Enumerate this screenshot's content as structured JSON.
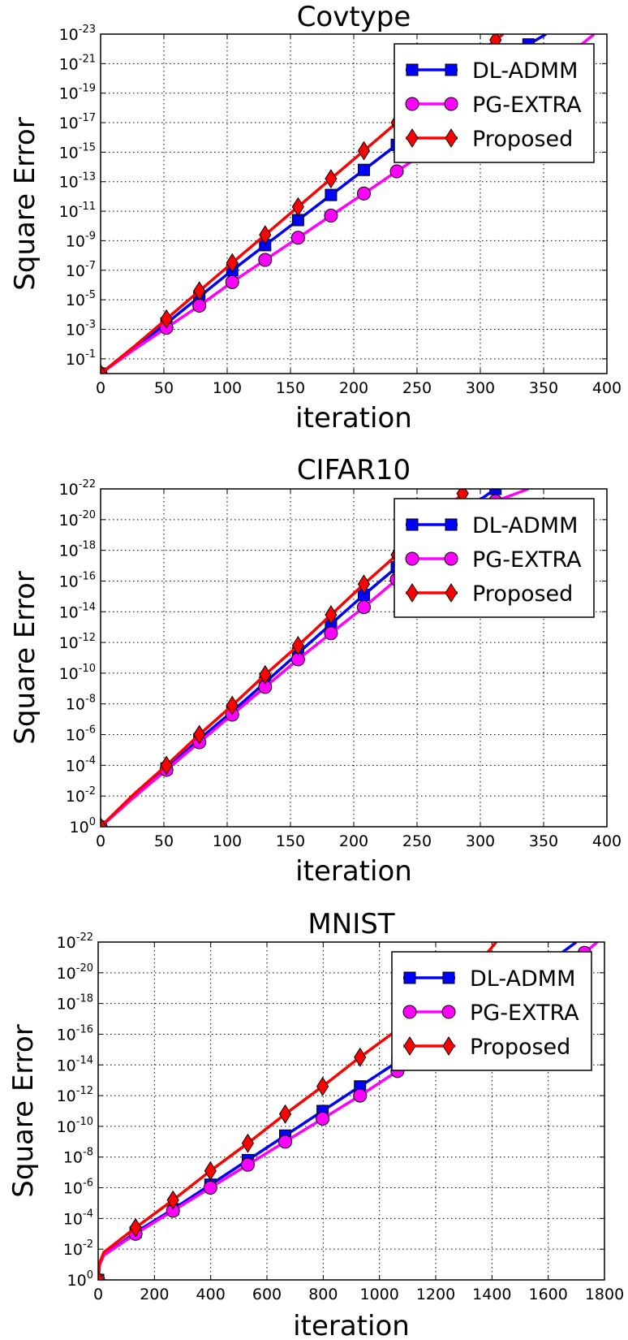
{
  "chart_data": [
    {
      "type": "line",
      "title": "Covtype",
      "xlabel": "iteration",
      "ylabel": "Square Error",
      "xlim": [
        0,
        400
      ],
      "xticks": [
        "0",
        "50",
        "100",
        "150",
        "200",
        "250",
        "300",
        "350",
        "400"
      ],
      "ylim_log10": [
        -23,
        0
      ],
      "yscale": "log",
      "yticks": [
        {
          "base": "10",
          "exp": "-1"
        },
        {
          "base": "10",
          "exp": "-3"
        },
        {
          "base": "10",
          "exp": "-5"
        },
        {
          "base": "10",
          "exp": "-7"
        },
        {
          "base": "10",
          "exp": "-9"
        },
        {
          "base": "10",
          "exp": "-11"
        },
        {
          "base": "10",
          "exp": "-13"
        },
        {
          "base": "10",
          "exp": "-15"
        },
        {
          "base": "10",
          "exp": "-17"
        },
        {
          "base": "10",
          "exp": "-19"
        },
        {
          "base": "10",
          "exp": "-21"
        },
        {
          "base": "10",
          "exp": "-23"
        }
      ],
      "grid": true,
      "legend": "top-right",
      "series": [
        {
          "name": "DL-ADMM",
          "color": "#0000ff",
          "marker": "square",
          "x": [
            0,
            26,
            52,
            78,
            104,
            130,
            156,
            182,
            208,
            234,
            260,
            286,
            312,
            338,
            352
          ],
          "y_log10": [
            0,
            -1.7,
            -3.4,
            -5.2,
            -7.0,
            -8.7,
            -10.4,
            -12.1,
            -13.8,
            -15.5,
            -17.2,
            -18.9,
            -20.6,
            -22.3,
            -23
          ]
        },
        {
          "name": "PG-EXTRA",
          "color": "#ff00ff",
          "marker": "circle",
          "x": [
            0,
            26,
            52,
            78,
            104,
            130,
            156,
            182,
            208,
            234,
            260,
            286,
            312,
            338,
            364,
            390
          ],
          "y_log10": [
            0,
            -1.6,
            -3.1,
            -4.6,
            -6.2,
            -7.7,
            -9.2,
            -10.7,
            -12.2,
            -13.7,
            -15.2,
            -16.7,
            -18.2,
            -19.7,
            -21.2,
            -23
          ]
        },
        {
          "name": "Proposed",
          "color": "#ff0000",
          "marker": "diamond",
          "x": [
            0,
            26,
            52,
            78,
            104,
            130,
            156,
            182,
            208,
            234,
            260,
            286,
            312,
            318
          ],
          "y_log10": [
            0,
            -1.8,
            -3.7,
            -5.6,
            -7.5,
            -9.4,
            -11.3,
            -13.2,
            -15.1,
            -17.0,
            -18.9,
            -20.8,
            -22.6,
            -23
          ]
        }
      ]
    },
    {
      "type": "line",
      "title": "CIFAR10",
      "xlabel": "iteration",
      "ylabel": "Square Error",
      "xlim": [
        0,
        400
      ],
      "xticks": [
        "0",
        "50",
        "100",
        "150",
        "200",
        "250",
        "300",
        "350",
        "400"
      ],
      "ylim_log10": [
        -22,
        0
      ],
      "yscale": "log",
      "yticks": [
        {
          "base": "10",
          "exp": "0"
        },
        {
          "base": "10",
          "exp": "-2"
        },
        {
          "base": "10",
          "exp": "-4"
        },
        {
          "base": "10",
          "exp": "-6"
        },
        {
          "base": "10",
          "exp": "-8"
        },
        {
          "base": "10",
          "exp": "-10"
        },
        {
          "base": "10",
          "exp": "-12"
        },
        {
          "base": "10",
          "exp": "-14"
        },
        {
          "base": "10",
          "exp": "-16"
        },
        {
          "base": "10",
          "exp": "-18"
        },
        {
          "base": "10",
          "exp": "-20"
        },
        {
          "base": "10",
          "exp": "-22"
        }
      ],
      "grid": true,
      "legend": "top-right",
      "series": [
        {
          "name": "DL-ADMM",
          "color": "#0000ff",
          "marker": "square",
          "x": [
            0,
            26,
            52,
            78,
            104,
            130,
            156,
            182,
            208,
            234,
            260,
            286,
            312,
            313
          ],
          "y_log10": [
            0,
            -1.9,
            -3.8,
            -5.7,
            -7.5,
            -9.4,
            -11.3,
            -13.2,
            -15.1,
            -16.9,
            -18.7,
            -20.5,
            -22.0,
            -22
          ]
        },
        {
          "name": "PG-EXTRA",
          "color": "#ff00ff",
          "marker": "circle",
          "x": [
            0,
            26,
            52,
            78,
            104,
            130,
            156,
            182,
            208,
            234,
            260,
            286,
            312,
            338
          ],
          "y_log10": [
            0,
            -1.9,
            -3.7,
            -5.5,
            -7.3,
            -9.1,
            -10.9,
            -12.6,
            -14.3,
            -16.1,
            -17.8,
            -19.5,
            -21.2,
            -22
          ]
        },
        {
          "name": "Proposed",
          "color": "#ff0000",
          "marker": "diamond",
          "x": [
            0,
            26,
            52,
            78,
            104,
            130,
            156,
            182,
            208,
            234,
            260,
            286,
            288
          ],
          "y_log10": [
            0,
            -2.1,
            -4.0,
            -6.0,
            -7.9,
            -9.9,
            -11.8,
            -13.8,
            -15.8,
            -17.7,
            -19.7,
            -21.7,
            -22
          ]
        }
      ]
    },
    {
      "type": "line",
      "title": "MNIST",
      "xlabel": "iteration",
      "ylabel": "Square Error",
      "xlim": [
        0,
        1800
      ],
      "xticks": [
        "0",
        "200",
        "400",
        "600",
        "800",
        "1000",
        "1200",
        "1400",
        "1600",
        "1800"
      ],
      "ylim_log10": [
        -22,
        0
      ],
      "yscale": "log",
      "yticks": [
        {
          "base": "10",
          "exp": "0"
        },
        {
          "base": "10",
          "exp": "-2"
        },
        {
          "base": "10",
          "exp": "-4"
        },
        {
          "base": "10",
          "exp": "-6"
        },
        {
          "base": "10",
          "exp": "-8"
        },
        {
          "base": "10",
          "exp": "-10"
        },
        {
          "base": "10",
          "exp": "-12"
        },
        {
          "base": "10",
          "exp": "-14"
        },
        {
          "base": "10",
          "exp": "-16"
        },
        {
          "base": "10",
          "exp": "-18"
        },
        {
          "base": "10",
          "exp": "-20"
        },
        {
          "base": "10",
          "exp": "-22"
        }
      ],
      "grid": true,
      "legend": "top-right",
      "series": [
        {
          "name": "DL-ADMM",
          "color": "#0000ff",
          "marker": "square",
          "x": [
            0,
            5,
            20,
            133,
            266,
            399,
            532,
            665,
            798,
            931,
            1064,
            1197,
            1330,
            1463,
            1596,
            1700
          ],
          "y_log10": [
            0,
            -1.0,
            -1.6,
            -3.1,
            -4.6,
            -6.2,
            -7.8,
            -9.4,
            -11.0,
            -12.6,
            -14.2,
            -15.8,
            -17.4,
            -19.0,
            -20.6,
            -22
          ]
        },
        {
          "name": "PG-EXTRA",
          "color": "#ff00ff",
          "marker": "circle",
          "x": [
            0,
            5,
            20,
            133,
            266,
            399,
            532,
            665,
            798,
            931,
            1064,
            1197,
            1330,
            1463,
            1596,
            1729,
            1775
          ],
          "y_log10": [
            0,
            -1.0,
            -1.6,
            -3.0,
            -4.5,
            -6.0,
            -7.5,
            -9.0,
            -10.5,
            -12.0,
            -13.6,
            -15.1,
            -16.6,
            -18.1,
            -19.7,
            -21.3,
            -22
          ]
        },
        {
          "name": "Proposed",
          "color": "#ff0000",
          "marker": "diamond",
          "x": [
            0,
            5,
            20,
            133,
            266,
            399,
            532,
            665,
            798,
            931,
            1064,
            1197,
            1330,
            1415
          ],
          "y_log10": [
            0,
            -1.1,
            -1.8,
            -3.4,
            -5.2,
            -7.1,
            -8.9,
            -10.8,
            -12.6,
            -14.5,
            -16.3,
            -18.2,
            -20.1,
            -22
          ]
        }
      ]
    }
  ]
}
